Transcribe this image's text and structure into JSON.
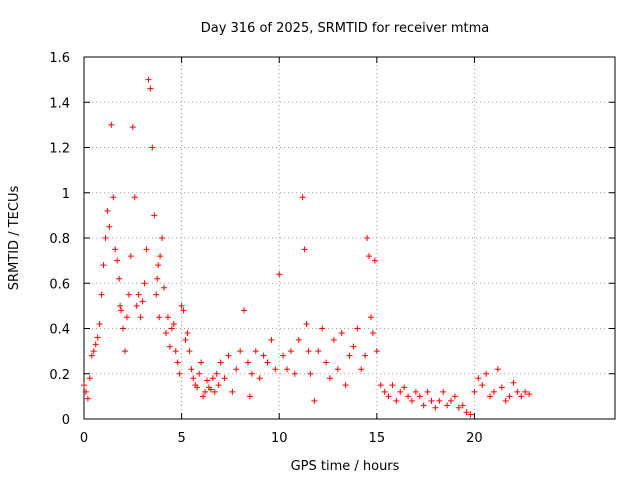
{
  "chart_data": {
    "type": "scatter",
    "title": "Day 316 of 2025, SRMTID for receiver mtma",
    "xlabel": "GPS time / hours",
    "ylabel": "SRMTID / TECUs",
    "xlim": [
      0,
      27.2
    ],
    "ylim": [
      0,
      1.6
    ],
    "xticks": [
      0,
      5,
      10,
      15,
      20
    ],
    "xtick_labels": [
      "0",
      "5",
      "10",
      "15",
      "20"
    ],
    "yticks": [
      0,
      0.2,
      0.4,
      0.6,
      0.8,
      1,
      1.2,
      1.4,
      1.6
    ],
    "ytick_labels": [
      "0",
      "0.2",
      "0.4",
      "0.6",
      "0.8",
      "1",
      "1.2",
      "1.4",
      "1.6"
    ],
    "grid": true,
    "marker": "plus",
    "marker_color": "#ff0000",
    "series": [
      {
        "name": "SRMTID",
        "x": [
          0.0,
          0.1,
          0.2,
          0.3,
          0.4,
          0.5,
          0.6,
          0.7,
          0.8,
          0.9,
          1.0,
          1.1,
          1.2,
          1.3,
          1.4,
          1.5,
          1.6,
          1.7,
          1.8,
          1.85,
          1.9,
          2.0,
          2.1,
          2.2,
          2.3,
          2.4,
          2.5,
          2.6,
          2.7,
          2.8,
          2.9,
          3.0,
          3.1,
          3.2,
          3.3,
          3.4,
          3.5,
          3.6,
          3.7,
          3.75,
          3.8,
          3.85,
          3.9,
          4.0,
          4.1,
          4.2,
          4.3,
          4.4,
          4.5,
          4.6,
          4.7,
          4.8,
          4.9,
          5.0,
          5.1,
          5.2,
          5.3,
          5.4,
          5.5,
          5.6,
          5.7,
          5.8,
          5.9,
          6.0,
          6.1,
          6.2,
          6.3,
          6.4,
          6.5,
          6.6,
          6.7,
          6.8,
          6.9,
          7.0,
          7.2,
          7.4,
          7.6,
          7.8,
          8.0,
          8.2,
          8.4,
          8.5,
          8.6,
          8.8,
          9.0,
          9.2,
          9.4,
          9.6,
          9.8,
          10.0,
          10.2,
          10.4,
          10.6,
          10.8,
          11.0,
          11.2,
          11.3,
          11.4,
          11.5,
          11.6,
          11.8,
          12.0,
          12.2,
          12.4,
          12.6,
          12.8,
          13.0,
          13.2,
          13.4,
          13.6,
          13.8,
          14.0,
          14.2,
          14.4,
          14.5,
          14.6,
          14.7,
          14.8,
          14.9,
          15.0,
          15.2,
          15.4,
          15.6,
          15.8,
          16.0,
          16.2,
          16.4,
          16.6,
          16.8,
          17.0,
          17.2,
          17.4,
          17.6,
          17.8,
          18.0,
          18.2,
          18.4,
          18.6,
          18.8,
          19.0,
          19.2,
          19.4,
          19.6,
          19.8,
          20.0,
          20.2,
          20.4,
          20.6,
          20.8,
          21.0,
          21.2,
          21.4,
          21.6,
          21.8,
          22.0,
          22.2,
          22.4,
          22.6,
          22.8
        ],
        "y": [
          0.15,
          0.12,
          0.09,
          0.18,
          0.28,
          0.3,
          0.33,
          0.36,
          0.42,
          0.55,
          0.68,
          0.8,
          0.92,
          0.85,
          1.3,
          0.98,
          0.75,
          0.7,
          0.62,
          0.5,
          0.48,
          0.4,
          0.3,
          0.45,
          0.55,
          0.72,
          1.29,
          0.98,
          0.5,
          0.55,
          0.45,
          0.52,
          0.6,
          0.75,
          1.5,
          1.46,
          1.2,
          0.9,
          0.55,
          0.62,
          0.68,
          0.45,
          0.72,
          0.8,
          0.58,
          0.38,
          0.45,
          0.32,
          0.4,
          0.42,
          0.3,
          0.25,
          0.2,
          0.5,
          0.48,
          0.35,
          0.38,
          0.3,
          0.22,
          0.18,
          0.15,
          0.14,
          0.2,
          0.25,
          0.1,
          0.12,
          0.17,
          0.14,
          0.13,
          0.18,
          0.12,
          0.2,
          0.15,
          0.25,
          0.18,
          0.28,
          0.12,
          0.22,
          0.3,
          0.48,
          0.25,
          0.1,
          0.2,
          0.3,
          0.18,
          0.28,
          0.25,
          0.35,
          0.22,
          0.64,
          0.28,
          0.22,
          0.3,
          0.2,
          0.35,
          0.98,
          0.75,
          0.42,
          0.3,
          0.2,
          0.08,
          0.3,
          0.4,
          0.25,
          0.18,
          0.35,
          0.22,
          0.38,
          0.15,
          0.28,
          0.32,
          0.4,
          0.22,
          0.28,
          0.8,
          0.72,
          0.45,
          0.38,
          0.7,
          0.3,
          0.15,
          0.12,
          0.1,
          0.15,
          0.08,
          0.12,
          0.14,
          0.1,
          0.08,
          0.12,
          0.1,
          0.06,
          0.12,
          0.08,
          0.05,
          0.08,
          0.12,
          0.06,
          0.08,
          0.1,
          0.05,
          0.06,
          0.03,
          0.02,
          0.12,
          0.18,
          0.15,
          0.2,
          0.1,
          0.12,
          0.22,
          0.14,
          0.08,
          0.1,
          0.16,
          0.12,
          0.1,
          0.12,
          0.11
        ]
      }
    ]
  }
}
